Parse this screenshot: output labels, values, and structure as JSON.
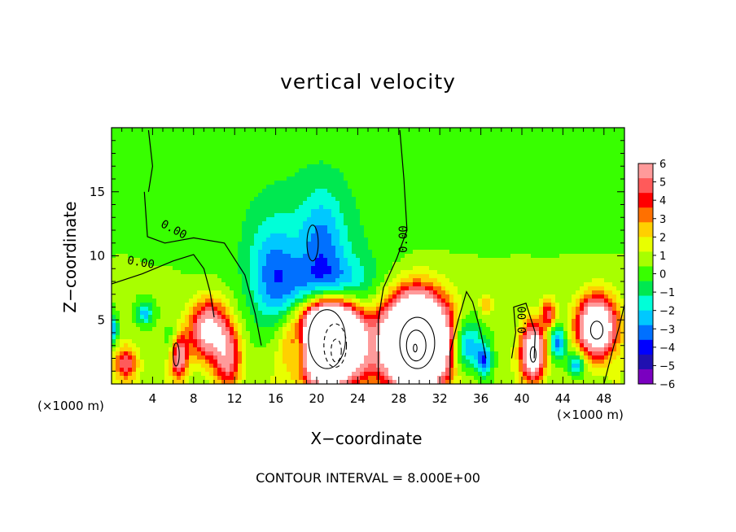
{
  "chart_data": {
    "type": "heatmap",
    "title": "vertical velocity",
    "xlabel": "X−coordinate",
    "ylabel": "Z−coordinate",
    "x_unit_left": "(×1000 m)",
    "x_unit_right": "(×1000 m)",
    "footer": "CONTOUR INTERVAL = 8.000E+00",
    "xlim": [
      0,
      50
    ],
    "ylim": [
      0,
      20
    ],
    "x_ticks": [
      4,
      8,
      12,
      16,
      20,
      24,
      28,
      32,
      36,
      40,
      44,
      48
    ],
    "y_ticks": [
      5,
      10,
      15
    ],
    "colorbar": {
      "range": [
        -6,
        6
      ],
      "labels": [
        "6",
        "5",
        "4",
        "3",
        "2",
        "1",
        "0",
        "−1",
        "−2",
        "−3",
        "−4",
        "−5",
        "−6"
      ],
      "colors": [
        "#ff9a9a",
        "#ff5a5a",
        "#ff0000",
        "#ff7000",
        "#ffd000",
        "#e8ff00",
        "#a8ff00",
        "#38ff00",
        "#00e850",
        "#00ffd8",
        "#00c8ff",
        "#0070ff",
        "#0000ff",
        "#2010b0",
        "#7a00c0"
      ]
    },
    "contour_labels": [
      "0.00",
      "0.00",
      "0.00",
      "0.00"
    ],
    "features": [
      {
        "kind": "updraft",
        "x": 6.5,
        "z": 2.4,
        "sx": 0.6,
        "sz": 1.2,
        "amp": 8
      },
      {
        "kind": "updraft",
        "x": 9.5,
        "z": 4.2,
        "sx": 1.3,
        "sz": 1.6,
        "amp": 7
      },
      {
        "kind": "updraft",
        "x": 11.4,
        "z": 2.0,
        "sx": 0.9,
        "sz": 1.6,
        "amp": 4.5
      },
      {
        "kind": "updraft",
        "x": 1.4,
        "z": 1.6,
        "sx": 0.8,
        "sz": 0.9,
        "amp": 4
      },
      {
        "kind": "updraft",
        "x": 21.3,
        "z": 3.6,
        "sx": 2.1,
        "sz": 2.2,
        "amp": 22
      },
      {
        "kind": "updraft",
        "x": 29.7,
        "z": 3.3,
        "sx": 2.1,
        "sz": 2.3,
        "amp": 22
      },
      {
        "kind": "updraft",
        "x": 41.1,
        "z": 2.5,
        "sx": 0.8,
        "sz": 1.5,
        "amp": 9
      },
      {
        "kind": "updraft",
        "x": 47.3,
        "z": 4.5,
        "sx": 1.3,
        "sz": 1.6,
        "amp": 10
      },
      {
        "kind": "updraft",
        "x": 42.6,
        "z": 5.5,
        "sx": 0.5,
        "sz": 0.8,
        "amp": 4
      },
      {
        "kind": "updraft",
        "x": 36.5,
        "z": 6.2,
        "sx": 0.4,
        "sz": 0.6,
        "amp": 2.5
      },
      {
        "kind": "downdraft",
        "x": 21.2,
        "z": 7.0,
        "sx": 2.6,
        "sz": 1.8,
        "amp": -5.5
      },
      {
        "kind": "downdraft",
        "x": 18.5,
        "z": 3.0,
        "sx": 0.6,
        "sz": 1.3,
        "amp": -5
      },
      {
        "kind": "downdraft",
        "x": 3.2,
        "z": 5.5,
        "sx": 0.6,
        "sz": 0.6,
        "amp": -3
      },
      {
        "kind": "downdraft",
        "x": 0.2,
        "z": 4.3,
        "sx": 0.3,
        "sz": 0.8,
        "amp": -3.5
      },
      {
        "kind": "downdraft",
        "x": 6.2,
        "z": 3.0,
        "sx": 0.6,
        "sz": 1.1,
        "amp": -4
      },
      {
        "kind": "downdraft",
        "x": 34.5,
        "z": 3.0,
        "sx": 1.1,
        "sz": 1.5,
        "amp": -4.5
      },
      {
        "kind": "downdraft",
        "x": 36.3,
        "z": 1.8,
        "sx": 0.5,
        "sz": 0.9,
        "amp": -4
      },
      {
        "kind": "downdraft",
        "x": 43.5,
        "z": 3.2,
        "sx": 0.6,
        "sz": 0.9,
        "amp": -4
      },
      {
        "kind": "downdraft",
        "x": 45.3,
        "z": 1.5,
        "sx": 0.6,
        "sz": 0.7,
        "amp": -4
      },
      {
        "kind": "downdraft",
        "x": 15.8,
        "z": 8.5,
        "sx": 1.6,
        "sz": 2.8,
        "amp": -2.8
      },
      {
        "kind": "downdraft",
        "x": 20.5,
        "z": 11.5,
        "sx": 1.5,
        "sz": 2.5,
        "amp": -2.3
      }
    ]
  }
}
